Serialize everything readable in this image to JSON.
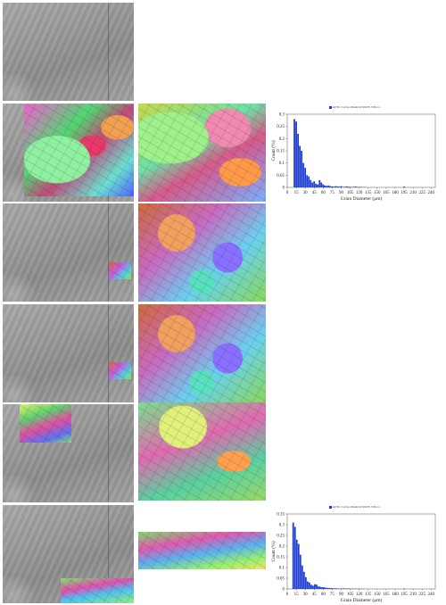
{
  "rows": [
    {
      "id": "row1",
      "sem": true,
      "overlay": null,
      "ebsd": null,
      "chart": null
    },
    {
      "id": "row2",
      "sem": true,
      "overlay": "full",
      "ebsd": "a",
      "chart": 0
    },
    {
      "id": "row3",
      "sem": true,
      "overlay": "small",
      "ebsd": "b",
      "chart": null
    },
    {
      "id": "row4",
      "sem": true,
      "overlay": "small",
      "ebsd": "b",
      "chart": null
    },
    {
      "id": "row5",
      "sem": true,
      "overlay": "top",
      "ebsd": "c",
      "chart": null
    },
    {
      "id": "row6",
      "sem": true,
      "overlay": "bottom",
      "ebsd": "d",
      "chart": 1
    }
  ],
  "chart_data": [
    {
      "type": "bar",
      "legend": "ssl761 Cw:Iso Mesh16 StitOS 5 Pts=1",
      "xlabel": "Grain Diameter (μm)",
      "ylabel": "Count (%)",
      "ylim": [
        0,
        0.3
      ],
      "yticks": [
        "0",
        "0.05",
        "0.1",
        "0.15",
        "0.2",
        "0.25",
        "0.3"
      ],
      "xlim": [
        0,
        247
      ],
      "xticks": [
        "0",
        "15",
        "30",
        "45",
        "60",
        "75",
        "90",
        "105",
        "120",
        "135",
        "150",
        "165",
        "180",
        "195",
        "210",
        "225",
        "240"
      ],
      "x": [
        12,
        15,
        18,
        21,
        24,
        27,
        30,
        33,
        36,
        39,
        42,
        45,
        48,
        51,
        54,
        57,
        60,
        63,
        66,
        69,
        72,
        75,
        78,
        81,
        84,
        87,
        90,
        93,
        96,
        99,
        102,
        105,
        108,
        111,
        114,
        117,
        120,
        123,
        126,
        129,
        195
      ],
      "values": [
        0.28,
        0.27,
        0.22,
        0.17,
        0.15,
        0.1,
        0.08,
        0.05,
        0.045,
        0.03,
        0.02,
        0.025,
        0.015,
        0.012,
        0.03,
        0.02,
        0.012,
        0.008,
        0.006,
        0.008,
        0.005,
        0.004,
        0.003,
        0.005,
        0.004,
        0.003,
        0.005,
        0.002,
        0.002,
        0.004,
        0.003,
        0.002,
        0.002,
        0.002,
        0.003,
        0.002,
        0.001,
        0.002,
        0.001,
        0.001,
        0.003
      ],
      "color": "#1f3fd1"
    },
    {
      "type": "bar",
      "legend": "ssl761 Cw:Iso Mesh16 StitOS 5 Pts=1",
      "xlabel": "Grain Diameter (μm)",
      "ylabel": "Count (%)",
      "ylim": [
        0,
        0.35
      ],
      "yticks": [
        "0",
        "0.05",
        "0.1",
        "0.15",
        "0.2",
        "0.25",
        "0.3",
        "0.35"
      ],
      "xlim": [
        0,
        247
      ],
      "xticks": [
        "0",
        "15",
        "30",
        "45",
        "60",
        "75",
        "90",
        "105",
        "120",
        "135",
        "150",
        "165",
        "180",
        "195",
        "210",
        "225",
        "240"
      ],
      "x": [
        10,
        13,
        16,
        19,
        22,
        25,
        28,
        31,
        34,
        37,
        40,
        43,
        46,
        49,
        52,
        55,
        58,
        61,
        64,
        67,
        70,
        73,
        76,
        79,
        82,
        85,
        88,
        91,
        94,
        97,
        100,
        103,
        106,
        109,
        112,
        115,
        118,
        121,
        124,
        127,
        195
      ],
      "values": [
        0.31,
        0.29,
        0.23,
        0.21,
        0.16,
        0.11,
        0.08,
        0.055,
        0.035,
        0.03,
        0.02,
        0.015,
        0.022,
        0.02,
        0.012,
        0.01,
        0.008,
        0.008,
        0.006,
        0.005,
        0.004,
        0.004,
        0.003,
        0.003,
        0.003,
        0.002,
        0.002,
        0.002,
        0.003,
        0.002,
        0.002,
        0.002,
        0.001,
        0.002,
        0.001,
        0.001,
        0.001,
        0.001,
        0.001,
        0.001,
        0.002
      ],
      "color": "#1f3fd1"
    }
  ]
}
